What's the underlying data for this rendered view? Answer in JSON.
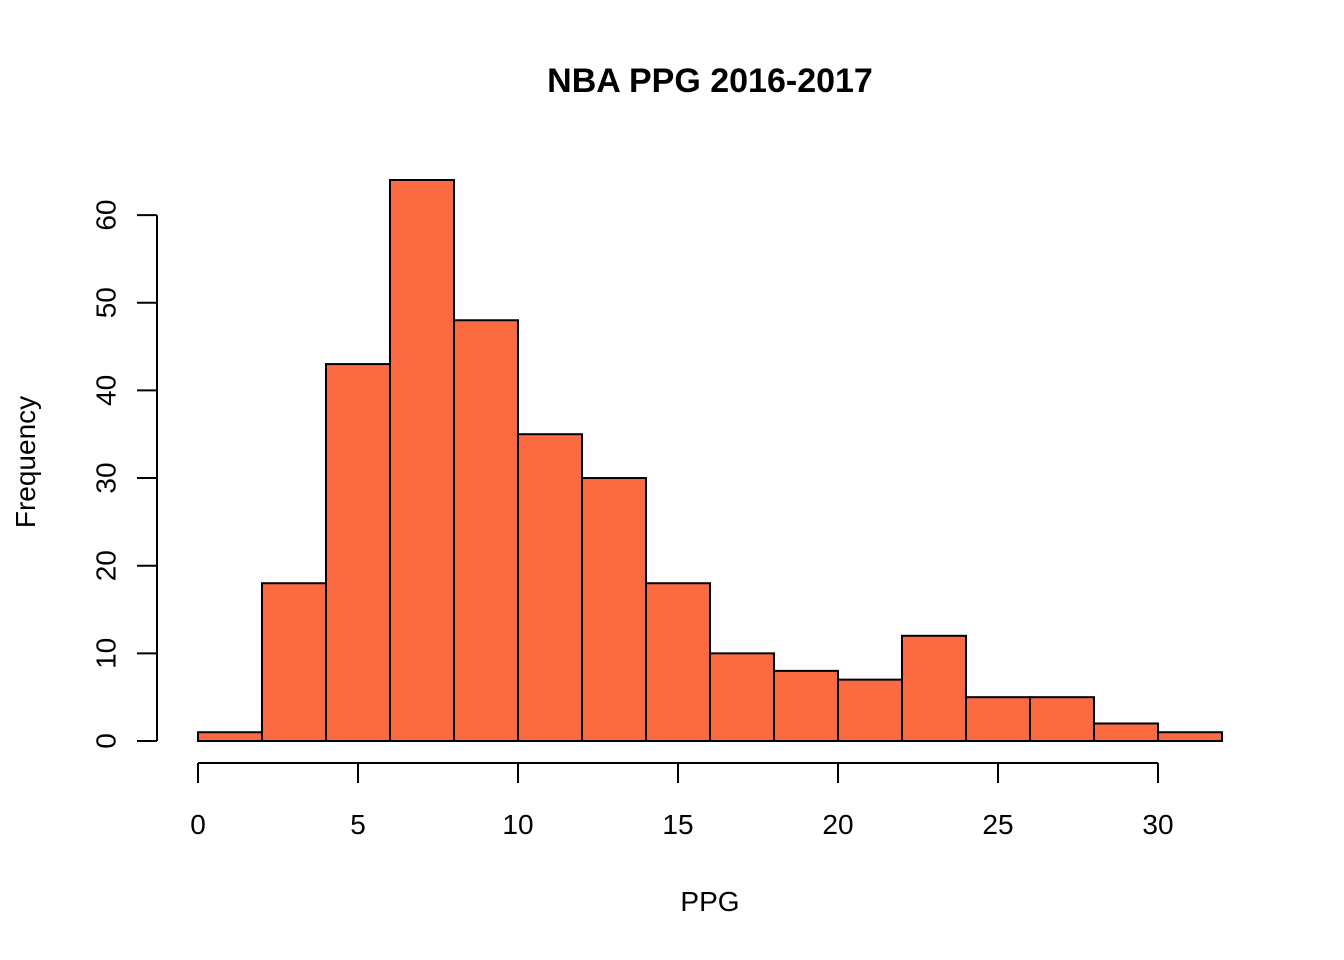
{
  "chart_data": {
    "type": "bar",
    "title": "NBA PPG 2016-2017",
    "xlabel": "PPG",
    "ylabel": "Frequency",
    "bins": [
      {
        "start": 0,
        "end": 2,
        "value": 1
      },
      {
        "start": 2,
        "end": 4,
        "value": 18
      },
      {
        "start": 4,
        "end": 6,
        "value": 43
      },
      {
        "start": 6,
        "end": 8,
        "value": 64
      },
      {
        "start": 8,
        "end": 10,
        "value": 48
      },
      {
        "start": 10,
        "end": 12,
        "value": 35
      },
      {
        "start": 12,
        "end": 14,
        "value": 30
      },
      {
        "start": 14,
        "end": 16,
        "value": 18
      },
      {
        "start": 16,
        "end": 18,
        "value": 10
      },
      {
        "start": 18,
        "end": 20,
        "value": 8
      },
      {
        "start": 20,
        "end": 22,
        "value": 7
      },
      {
        "start": 22,
        "end": 24,
        "value": 12
      },
      {
        "start": 24,
        "end": 26,
        "value": 5
      },
      {
        "start": 26,
        "end": 28,
        "value": 5
      },
      {
        "start": 28,
        "end": 30,
        "value": 2
      },
      {
        "start": 30,
        "end": 32,
        "value": 1
      }
    ],
    "xlim": [
      0,
      32
    ],
    "ylim": [
      0,
      64
    ],
    "x_ticks": [
      0,
      5,
      10,
      15,
      20,
      25,
      30
    ],
    "y_ticks": [
      0,
      10,
      20,
      30,
      40,
      50,
      60
    ],
    "grid": false,
    "bar_color": "#fc6a42",
    "edge_color": "#000000"
  }
}
